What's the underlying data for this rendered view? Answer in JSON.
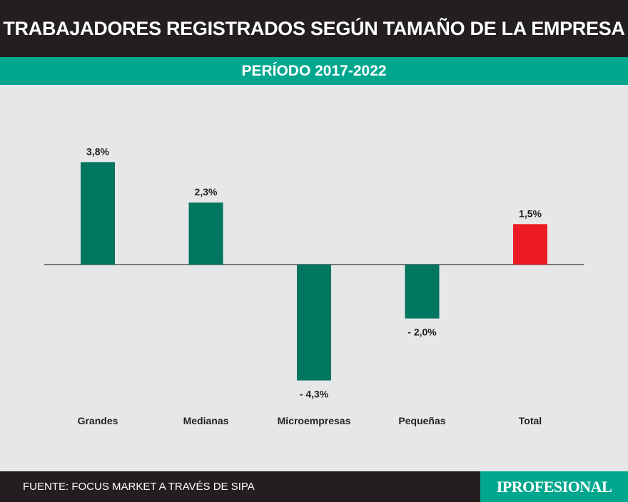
{
  "header": {
    "title": "TRABAJADORES REGISTRADOS SEGÚN TAMAÑO DE LA EMPRESA"
  },
  "subheader": {
    "period": "PERÍODO 2017-2022"
  },
  "footer": {
    "source": "FUENTE: FOCUS MARKET A TRAVÉS DE SIPA",
    "brand": "IPROFESIONAL"
  },
  "colors": {
    "bar": "#007560",
    "highlight": "#ed1c24",
    "header_bg": "#231f20",
    "accent": "#00a78e",
    "plot_bg": "#e6e7e8"
  },
  "chart_data": {
    "type": "bar",
    "title": "TRABAJADORES REGISTRADOS SEGÚN TAMAÑO DE LA EMPRESA",
    "subtitle": "PERÍODO 2017-2022",
    "categories": [
      "Grandes",
      "Medianas",
      "Microempresas",
      "Pequeñas",
      "Total"
    ],
    "values": [
      3.8,
      2.3,
      -4.3,
      -2.0,
      1.5
    ],
    "value_labels": [
      "3,8%",
      "2,3%",
      "- 4,3%",
      "- 2,0%",
      "1,5%"
    ],
    "highlight_category": "Total",
    "unit": "%",
    "ylim": [
      -4.3,
      3.8
    ],
    "grid": false,
    "legend": false
  }
}
